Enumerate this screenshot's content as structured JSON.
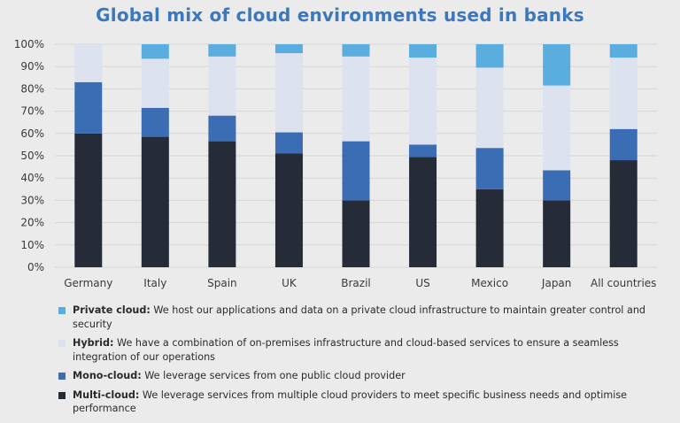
{
  "chart_data": {
    "type": "bar",
    "stacked": true,
    "title": "Global mix of cloud environments used in banks",
    "categories": [
      "Germany",
      "Italy",
      "Spain",
      "UK",
      "Brazil",
      "US",
      "Mexico",
      "Japan",
      "All countries"
    ],
    "y_ticks": [
      "0%",
      "10%",
      "20%",
      "30%",
      "40%",
      "50%",
      "60%",
      "70%",
      "80%",
      "90%",
      "100%"
    ],
    "ylim": [
      0,
      100
    ],
    "grid": true,
    "legend_position": "bottom",
    "series": [
      {
        "name": "Multi-cloud",
        "color": "#252c38",
        "values": [
          60,
          58.5,
          56.5,
          51,
          30,
          49.5,
          35,
          30,
          48
        ]
      },
      {
        "name": "Mono-cloud",
        "color": "#3a6db3",
        "values": [
          23,
          13,
          11.5,
          9.5,
          26.5,
          5.5,
          18.5,
          13.5,
          14
        ]
      },
      {
        "name": "Hybrid",
        "color": "#dde2ef",
        "values": [
          17,
          22,
          26.5,
          35.5,
          38,
          39,
          36,
          38,
          32
        ]
      },
      {
        "name": "Private cloud",
        "color": "#5aaddf",
        "values": [
          0,
          6.5,
          5.5,
          4,
          5.5,
          6,
          10.5,
          18.5,
          6
        ]
      }
    ]
  },
  "legend": [
    {
      "label": "Private cloud:",
      "text": " We host our applications and data on a private cloud infrastructure to maintain greater control and security",
      "color": "#5aaddf"
    },
    {
      "label": "Hybrid:",
      "text": " We have a combination of on-premises infrastructure and cloud-based services to ensure a seamless integration of our operations",
      "color": "#dde2ef"
    },
    {
      "label": "Mono-cloud:",
      "text": " We leverage services from one public cloud provider",
      "color": "#3a6db3"
    },
    {
      "label": "Multi-cloud:",
      "text": " We leverage services from multiple cloud providers to meet specific business needs and optimise performance",
      "color": "#252c38"
    }
  ]
}
